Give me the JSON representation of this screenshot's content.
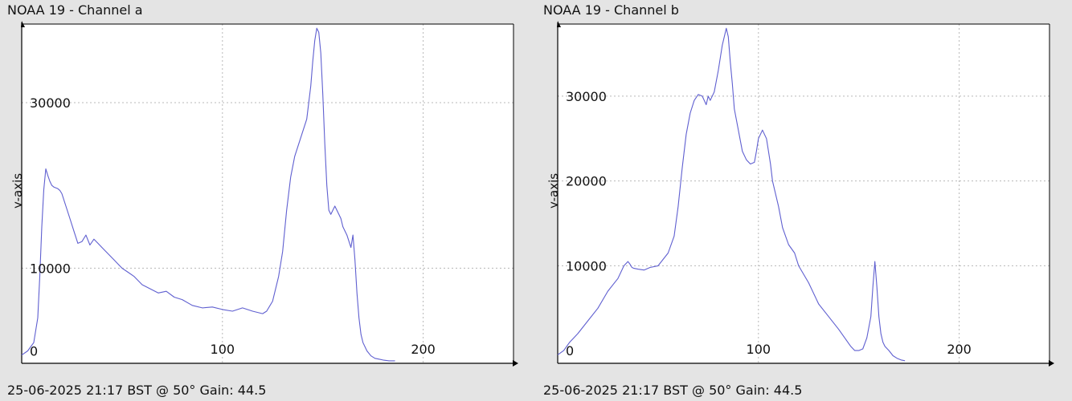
{
  "chart_data": [
    {
      "type": "line",
      "title": "NOAA 19 - Channel a",
      "footer": "25-06-2025 21:17 BST @ 50° Gain: 44.5",
      "ylabel": "y-axis",
      "xlabel": "",
      "xlim": [
        0,
        245
      ],
      "ylim": [
        -1500,
        39500
      ],
      "xticks": [
        0,
        100,
        200
      ],
      "yticks": [
        0,
        10000,
        30000
      ],
      "xgrid": [
        100,
        200
      ],
      "ygrid": [
        10000,
        30000
      ],
      "grid": true,
      "line_color": "#5f5fd0",
      "x": [
        0,
        3,
        6,
        8,
        9,
        10,
        11,
        12,
        13,
        14,
        15,
        16,
        17,
        18,
        19,
        20,
        22,
        24,
        26,
        28,
        30,
        32,
        34,
        36,
        38,
        40,
        42,
        44,
        46,
        48,
        50,
        53,
        56,
        60,
        64,
        68,
        72,
        76,
        80,
        85,
        90,
        95,
        100,
        105,
        110,
        115,
        120,
        122,
        125,
        128,
        130,
        132,
        134,
        136,
        138,
        140,
        142,
        144,
        145,
        146,
        147,
        148,
        149,
        150,
        151,
        152,
        153,
        154,
        155,
        156,
        157,
        158,
        159,
        160,
        162,
        164,
        165,
        166,
        167,
        168,
        169,
        170,
        172,
        174,
        176,
        178,
        180,
        183,
        186
      ],
      "y": [
        -500,
        0,
        1000,
        4000,
        9000,
        15000,
        19500,
        22000,
        21200,
        20500,
        20000,
        19800,
        19700,
        19600,
        19400,
        19000,
        17500,
        16000,
        14500,
        13000,
        13200,
        14000,
        12800,
        13500,
        13000,
        12500,
        12000,
        11500,
        11000,
        10500,
        10000,
        9500,
        9000,
        8000,
        7500,
        7000,
        7200,
        6500,
        6200,
        5500,
        5200,
        5300,
        5000,
        4800,
        5200,
        4800,
        4500,
        4800,
        6000,
        9000,
        12000,
        17000,
        21000,
        23500,
        25000,
        26500,
        28000,
        32000,
        35000,
        37500,
        39000,
        38500,
        36000,
        31000,
        25000,
        20000,
        17000,
        16500,
        17000,
        17500,
        17000,
        16500,
        16000,
        15000,
        14000,
        12500,
        14000,
        11000,
        7000,
        4000,
        2000,
        1000,
        0,
        -600,
        -900,
        -1000,
        -1100,
        -1200,
        -1200
      ]
    },
    {
      "type": "line",
      "title": "NOAA 19 - Channel b",
      "footer": "25-06-2025 21:17 BST @ 50° Gain: 44.5",
      "ylabel": "y-axis",
      "xlabel": "",
      "xlim": [
        0,
        245
      ],
      "ylim": [
        -1500,
        38500
      ],
      "xticks": [
        0,
        100,
        200
      ],
      "yticks": [
        0,
        10000,
        20000,
        30000
      ],
      "xgrid": [
        100,
        200
      ],
      "ygrid": [
        10000,
        20000,
        30000
      ],
      "grid": true,
      "line_color": "#5f5fd0",
      "x": [
        0,
        3,
        6,
        10,
        15,
        20,
        25,
        30,
        33,
        35,
        36,
        37,
        38,
        40,
        43,
        46,
        50,
        55,
        58,
        60,
        62,
        64,
        66,
        68,
        70,
        72,
        74,
        75,
        76,
        78,
        80,
        82,
        83,
        84,
        85,
        86,
        87,
        88,
        90,
        92,
        94,
        96,
        98,
        99,
        100,
        102,
        104,
        105,
        106,
        107,
        108,
        110,
        112,
        115,
        118,
        120,
        125,
        130,
        135,
        140,
        143,
        146,
        148,
        150,
        152,
        154,
        156,
        157,
        158,
        159,
        160,
        161,
        162,
        163,
        165,
        167,
        169,
        171,
        173
      ],
      "y": [
        -500,
        0,
        1000,
        2000,
        3500,
        5000,
        7000,
        8500,
        10000,
        10500,
        10200,
        9800,
        9700,
        9600,
        9500,
        9800,
        10000,
        11500,
        13500,
        17000,
        21500,
        25500,
        28000,
        29500,
        30200,
        30000,
        29000,
        30000,
        29500,
        30500,
        33000,
        36000,
        37000,
        38000,
        37000,
        34000,
        31500,
        28500,
        26000,
        23500,
        22500,
        22000,
        22200,
        23500,
        25000,
        26000,
        25000,
        23500,
        22000,
        20000,
        19000,
        17000,
        14500,
        12500,
        11500,
        10000,
        8000,
        5500,
        4000,
        2500,
        1500,
        500,
        0,
        0,
        200,
        1500,
        4000,
        7500,
        10500,
        7500,
        4000,
        2000,
        1000,
        500,
        0,
        -600,
        -900,
        -1100,
        -1200
      ]
    }
  ]
}
